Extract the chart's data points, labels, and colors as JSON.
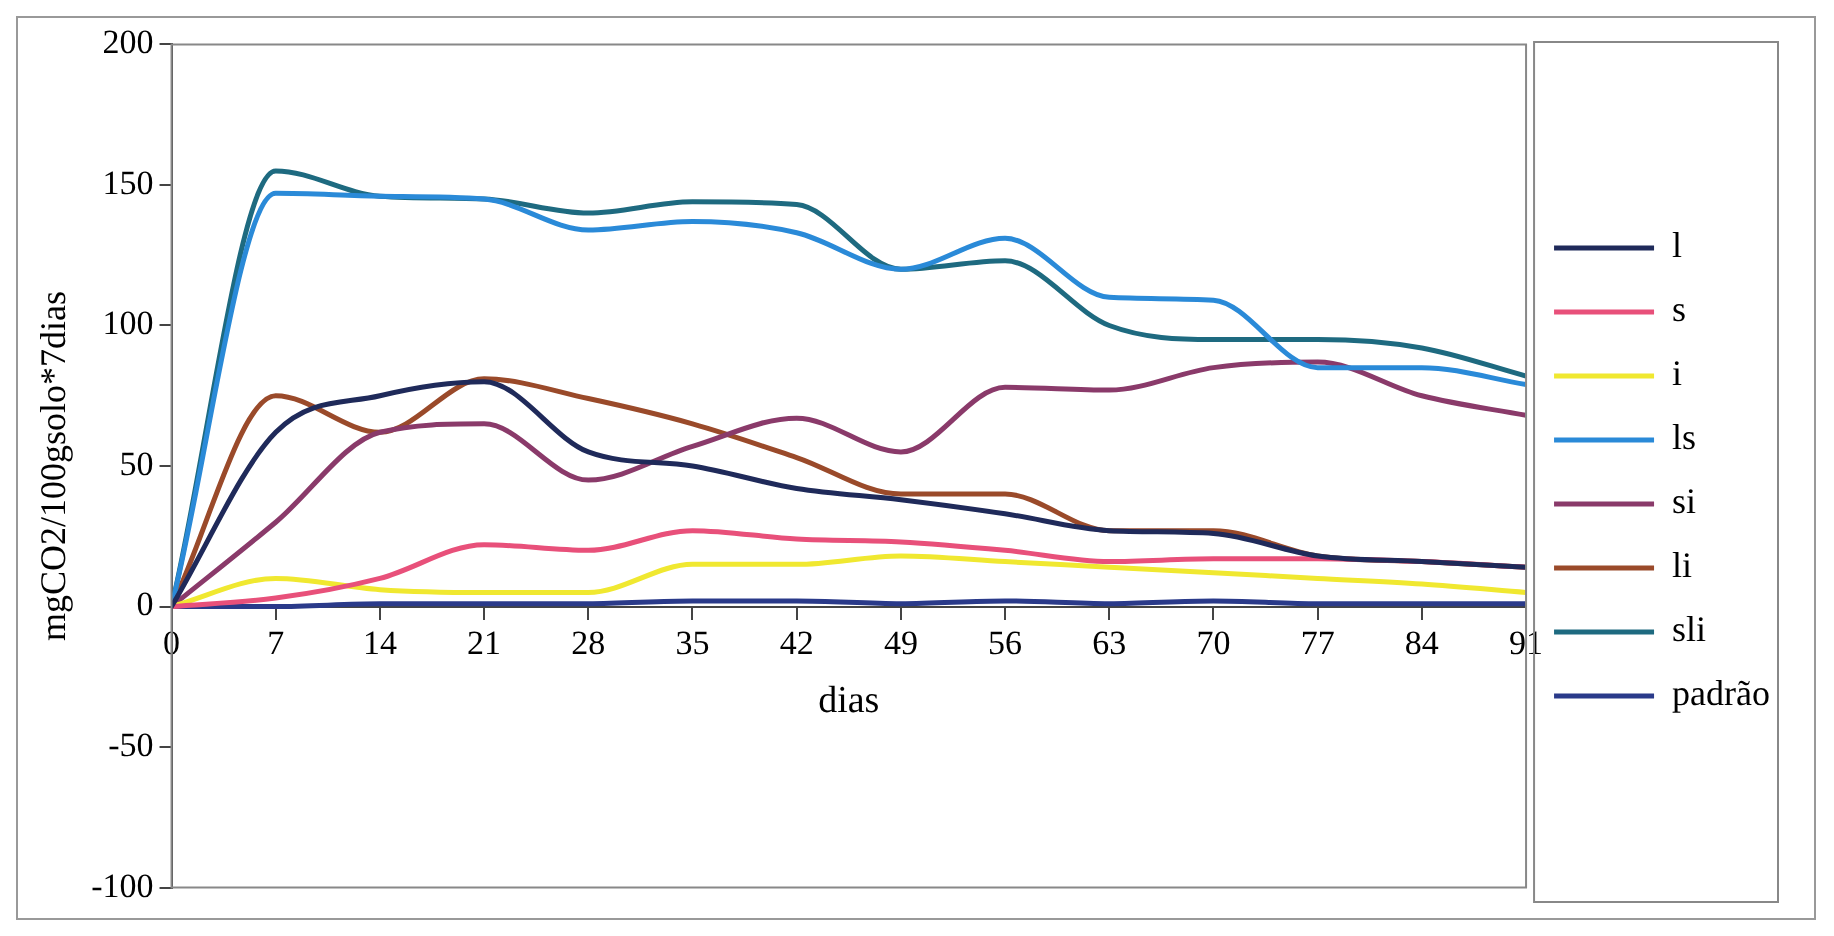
{
  "chart_data": {
    "type": "line",
    "xlabel": "dias",
    "ylabel": "mgCO2/100gsolo*7dias",
    "x": [
      0,
      7,
      14,
      21,
      28,
      35,
      42,
      49,
      56,
      63,
      70,
      77,
      84,
      91
    ],
    "xlim": [
      0,
      91
    ],
    "xticks": [
      0,
      7,
      14,
      21,
      28,
      35,
      42,
      49,
      56,
      63,
      70,
      77,
      84,
      91
    ],
    "ylim": [
      -100,
      200
    ],
    "yticks": [
      -100,
      -50,
      0,
      50,
      100,
      150,
      200
    ],
    "grid": false,
    "legend": "right",
    "marker": "none",
    "line_style": "solid",
    "series": [
      {
        "name": "l",
        "color": "#1f2a5a",
        "values": [
          0,
          62,
          75,
          80,
          55,
          50,
          42,
          38,
          33,
          27,
          26,
          18,
          16,
          14
        ]
      },
      {
        "name": "s",
        "color": "#e8507a",
        "values": [
          0,
          3,
          10,
          22,
          20,
          27,
          24,
          23,
          20,
          16,
          17,
          17,
          16,
          14
        ]
      },
      {
        "name": "i",
        "color": "#f0e830",
        "values": [
          0,
          10,
          6,
          5,
          5,
          15,
          15,
          18,
          16,
          14,
          12,
          10,
          8,
          5
        ]
      },
      {
        "name": "ls",
        "color": "#2a8ad8",
        "values": [
          0,
          147,
          146,
          145,
          134,
          137,
          133,
          120,
          131,
          110,
          109,
          85,
          85,
          79
        ]
      },
      {
        "name": "si",
        "color": "#8a3a6a",
        "values": [
          0,
          30,
          62,
          65,
          45,
          57,
          67,
          55,
          78,
          77,
          85,
          87,
          75,
          68
        ]
      },
      {
        "name": "li",
        "color": "#9a4a2a",
        "values": [
          0,
          75,
          62,
          81,
          74,
          65,
          53,
          40,
          40,
          27,
          27,
          18,
          16,
          14
        ]
      },
      {
        "name": "sli",
        "color": "#1e6a80",
        "values": [
          0,
          155,
          146,
          145,
          140,
          144,
          143,
          120,
          123,
          100,
          95,
          95,
          92,
          82
        ]
      },
      {
        "name": "padrão",
        "color": "#2a3a8a",
        "values": [
          0,
          0,
          1,
          1,
          1,
          2,
          2,
          1,
          2,
          1,
          2,
          1,
          1,
          1
        ]
      }
    ]
  }
}
